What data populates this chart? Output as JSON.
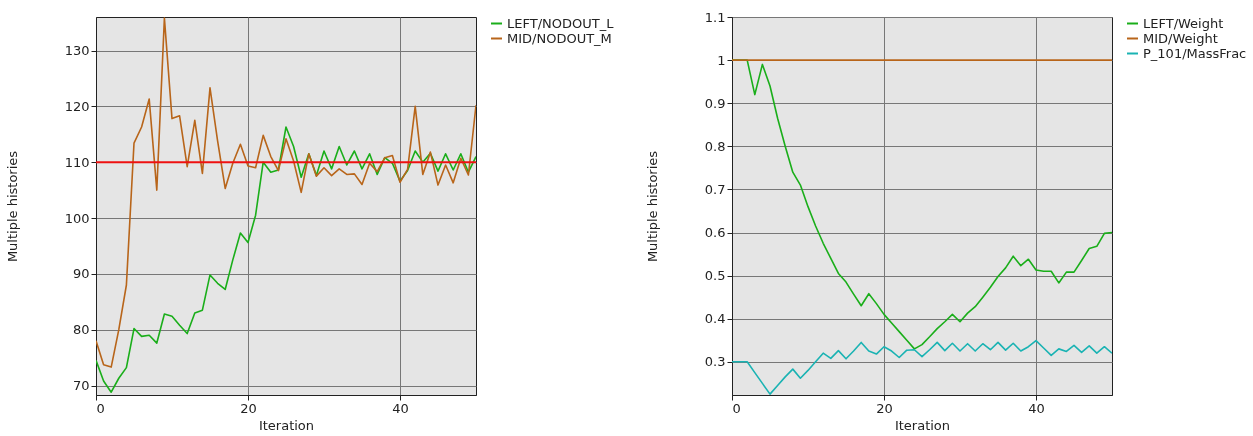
{
  "chart_data": [
    {
      "type": "line",
      "xlabel": "Iteration",
      "ylabel": "Multiple histories",
      "x": [
        0,
        1,
        2,
        3,
        4,
        5,
        6,
        7,
        8,
        9,
        10,
        11,
        12,
        13,
        14,
        15,
        16,
        17,
        18,
        19,
        20,
        21,
        22,
        23,
        24,
        25,
        26,
        27,
        28,
        29,
        30,
        31,
        32,
        33,
        34,
        35,
        36,
        37,
        38,
        39,
        40,
        41,
        42,
        43,
        44,
        45,
        46,
        47,
        48,
        49,
        50
      ],
      "xlim": [
        0,
        50
      ],
      "xticks": [
        0,
        20,
        40
      ],
      "ylim": [
        68.3,
        136
      ],
      "yticks": [
        70,
        80,
        90,
        100,
        110,
        120,
        130
      ],
      "grid": true,
      "legend": "top right",
      "series": [
        {
          "name": "LEFT/NODOUT_L",
          "color": "#1aae1a",
          "values": [
            74.5,
            70.8,
            68.8,
            71.3,
            73.2,
            80.2,
            78.8,
            79,
            77.6,
            82.8,
            82.4,
            80.8,
            79.3,
            83,
            83.5,
            89.8,
            88.3,
            87.2,
            92.5,
            97.3,
            95.6,
            100.5,
            110,
            108.2,
            108.6,
            116.3,
            112.8,
            107.3,
            111.5,
            107.6,
            112,
            108.8,
            112.8,
            109.5,
            112,
            108.8,
            111.5,
            107.8,
            110.8,
            109.8,
            106.6,
            108.5,
            112,
            110,
            111.6,
            108.4,
            111.5,
            108.6,
            111.5,
            108.2,
            111
          ]
        },
        {
          "name": "MID/NODOUT_M",
          "color": "#b8651a",
          "values": [
            78,
            73.7,
            73.3,
            80,
            88,
            113.4,
            116.3,
            121.3,
            105,
            135.8,
            117.8,
            118.3,
            109.2,
            117.5,
            108,
            123.3,
            113.8,
            105.3,
            109.8,
            113.2,
            109.3,
            109,
            114.8,
            111,
            108.5,
            114.2,
            110.2,
            104.6,
            111.5,
            107.5,
            109,
            107.6,
            108.8,
            107.8,
            107.9,
            106,
            109.8,
            108.3,
            110.8,
            111.2,
            106.4,
            108.7,
            120,
            107.8,
            111.8,
            105.9,
            109.5,
            106.3,
            110.7,
            107.7,
            120.2
          ]
        }
      ],
      "ref_lines": [
        {
          "axis": "y",
          "value": 110,
          "color": "#ee1111"
        }
      ]
    },
    {
      "type": "line",
      "xlabel": "Iteration",
      "ylabel": "Multiple histories",
      "x": [
        0,
        1,
        2,
        3,
        4,
        5,
        6,
        7,
        8,
        9,
        10,
        11,
        12,
        13,
        14,
        15,
        16,
        17,
        18,
        19,
        20,
        21,
        22,
        23,
        24,
        25,
        26,
        27,
        28,
        29,
        30,
        31,
        32,
        33,
        34,
        35,
        36,
        37,
        38,
        39,
        40,
        41,
        42,
        43,
        44,
        45,
        46,
        47,
        48,
        49,
        50
      ],
      "xlim": [
        0,
        50
      ],
      "xticks": [
        0,
        20,
        40
      ],
      "ylim": [
        0.223,
        1.1
      ],
      "yticks": [
        0.3,
        0.4,
        0.5,
        0.6,
        0.7,
        0.8,
        0.9,
        1,
        1.1
      ],
      "grid": true,
      "legend": "top right",
      "series": [
        {
          "name": "LEFT/Weight",
          "color": "#1aae1a",
          "values": [
            1,
            1,
            1,
            0.92,
            0.99,
            0.94,
            0.865,
            0.8,
            0.74,
            0.71,
            0.66,
            0.615,
            0.575,
            0.54,
            0.505,
            0.485,
            0.457,
            0.43,
            0.458,
            0.435,
            0.41,
            0.39,
            0.37,
            0.35,
            0.33,
            0.34,
            0.358,
            0.377,
            0.393,
            0.41,
            0.393,
            0.413,
            0.428,
            0.45,
            0.473,
            0.498,
            0.518,
            0.545,
            0.523,
            0.538,
            0.513,
            0.51,
            0.51,
            0.483,
            0.508,
            0.508,
            0.535,
            0.563,
            0.568,
            0.598,
            0.6
          ]
        },
        {
          "name": "MID/Weight",
          "color": "#b8651a",
          "values": [
            1,
            1,
            1,
            1,
            1,
            1,
            1,
            1,
            1,
            1,
            1,
            1,
            1,
            1,
            1,
            1,
            1,
            1,
            1,
            1,
            1,
            1,
            1,
            1,
            1,
            1,
            1,
            1,
            1,
            1,
            1,
            1,
            1,
            1,
            1,
            1,
            1,
            1,
            1,
            1,
            1,
            1,
            1,
            1,
            1,
            1,
            1,
            1,
            1,
            1,
            1
          ]
        },
        {
          "name": "P_101/MassFrac",
          "color": "#1ab3b3",
          "values": [
            0.3,
            0.3,
            0.3,
            0.275,
            0.25,
            0.225,
            0.245,
            0.265,
            0.283,
            0.262,
            0.28,
            0.3,
            0.32,
            0.308,
            0.326,
            0.307,
            0.325,
            0.345,
            0.325,
            0.318,
            0.335,
            0.325,
            0.31,
            0.327,
            0.328,
            0.312,
            0.328,
            0.345,
            0.326,
            0.343,
            0.325,
            0.342,
            0.325,
            0.342,
            0.328,
            0.345,
            0.327,
            0.343,
            0.325,
            0.335,
            0.349,
            0.332,
            0.315,
            0.33,
            0.324,
            0.338,
            0.322,
            0.337,
            0.32,
            0.335,
            0.32
          ]
        }
      ]
    }
  ]
}
